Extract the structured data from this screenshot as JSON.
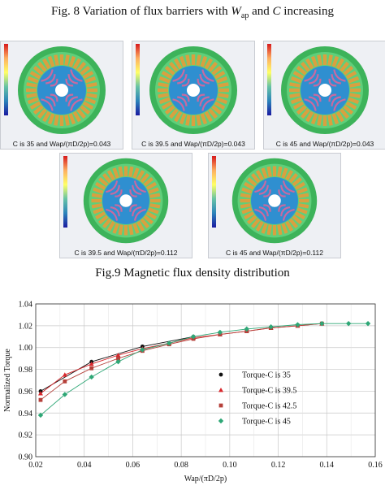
{
  "captions": {
    "fig8_prefix": "Fig. 8 Variation of flux barriers with ",
    "fig8_w": "W",
    "fig8_sub": "ap",
    "fig8_mid": " and ",
    "fig8_c": "C",
    "fig8_suffix": " increasing",
    "fig9": "Fig.9 Magnetic flux density distribution"
  },
  "field_images": [
    {
      "label": "C is 35 and Wap/(πD/2p)=0.043"
    },
    {
      "label": "C is 39.5 and Wap/(πD/2p)=0.043"
    },
    {
      "label": "C is 45 and Wap/(πD/2p)=0.043"
    },
    {
      "label": "C is 39.5 and Wap/(πD/2p)=0.112"
    },
    {
      "label": "C is 45 and Wap/(πD/2p)=0.112"
    }
  ],
  "colors": {
    "stator": "#3db35a",
    "rotor": "#2f8fd0",
    "coil": "#d9a040",
    "barrier": "#c96aa0"
  },
  "chart_data": {
    "type": "scatter",
    "xlabel": "Wap/(πD/2p)",
    "ylabel": "Normalized Torque",
    "xlim": [
      0.02,
      0.16
    ],
    "ylim": [
      0.9,
      1.04
    ],
    "xticks": [
      "0.02",
      "0.04",
      "0.06",
      "0.08",
      "0.10",
      "0.12",
      "0.14",
      "0.16"
    ],
    "yticks": [
      "0.90",
      "0.92",
      "0.94",
      "0.96",
      "0.98",
      "1.00",
      "1.02",
      "1.04"
    ],
    "grid": true,
    "legend_position": "lower-right",
    "series": [
      {
        "name": "Torque-C is 35",
        "color": "#111111",
        "marker": "circle",
        "x": [
          0.022,
          0.043,
          0.064,
          0.085
        ],
        "y": [
          0.96,
          0.987,
          1.001,
          1.01
        ]
      },
      {
        "name": "Torque-C is 39.5",
        "color": "#d8262b",
        "marker": "triangle",
        "x": [
          0.022,
          0.032,
          0.043,
          0.054,
          0.064,
          0.075,
          0.085,
          0.096,
          0.107,
          0.117,
          0.128,
          0.138
        ],
        "y": [
          0.958,
          0.975,
          0.985,
          0.993,
          0.999,
          1.004,
          1.009,
          1.012,
          1.015,
          1.018,
          1.02,
          1.022
        ]
      },
      {
        "name": "Torque-C is 42.5",
        "color": "#b5403a",
        "marker": "square",
        "x": [
          0.022,
          0.032,
          0.043,
          0.054,
          0.064,
          0.075,
          0.085,
          0.096,
          0.107,
          0.117,
          0.128,
          0.138
        ],
        "y": [
          0.952,
          0.969,
          0.981,
          0.99,
          0.997,
          1.003,
          1.008,
          1.012,
          1.015,
          1.018,
          1.02,
          1.022
        ]
      },
      {
        "name": "Torque-C is 45",
        "color": "#2ea776",
        "marker": "diamond",
        "x": [
          0.022,
          0.032,
          0.043,
          0.054,
          0.064,
          0.075,
          0.085,
          0.096,
          0.107,
          0.117,
          0.128,
          0.138,
          0.149,
          0.157
        ],
        "y": [
          0.938,
          0.957,
          0.973,
          0.987,
          0.998,
          1.004,
          1.01,
          1.014,
          1.017,
          1.019,
          1.021,
          1.022,
          1.022,
          1.022
        ]
      }
    ]
  }
}
